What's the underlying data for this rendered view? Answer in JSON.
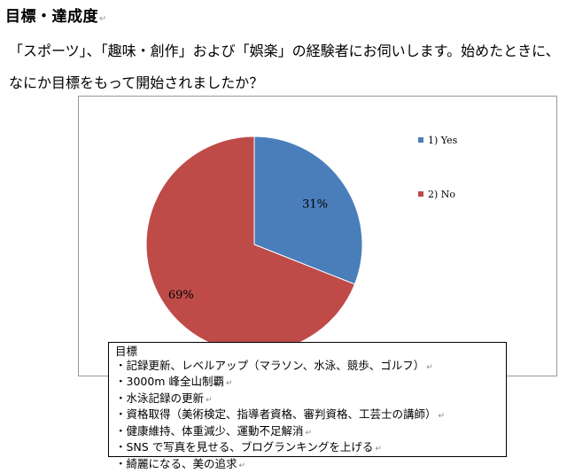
{
  "heading": "目標・達成度",
  "question": "「スポーツ」、「趣味・創作」および「娯楽」の経験者にお伺いします。始めたときに、なにか目標をもって開始されましたか？",
  "chart_data": {
    "type": "pie",
    "title": "",
    "categories": [
      "1) Yes",
      "2) No"
    ],
    "values": [
      31,
      69
    ],
    "data_labels": [
      "31%",
      "69%"
    ],
    "colors": [
      "#4a7ebb",
      "#be4b48"
    ],
    "legend_position": "right"
  },
  "goals_box": {
    "title": "目標",
    "items": [
      "・記録更新、レベルアップ（マラソン、水泳、競歩、ゴルフ）",
      "・3000m 峰全山制覇",
      "・水泳記録の更新",
      "・資格取得（美術検定、指導者資格、審判資格、工芸士の講師）",
      "・健康維持、体重減少、運動不足解消",
      "・SNS で写真を見せる、ブログランキングを上げる",
      "・綺麗になる、美の追求"
    ]
  }
}
